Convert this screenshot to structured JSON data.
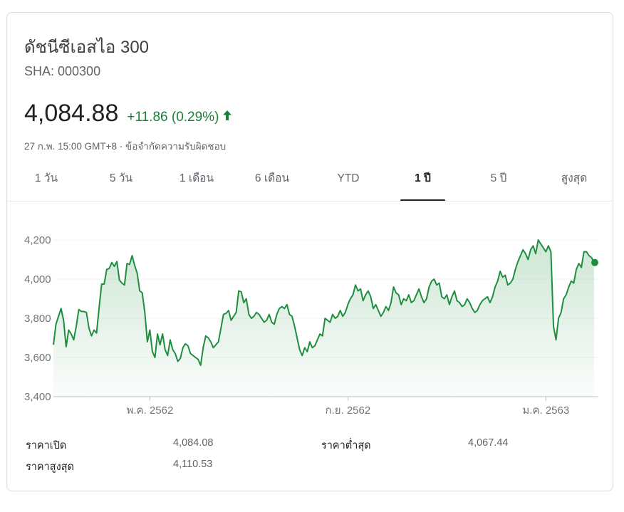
{
  "header": {
    "title": "ดัชนีซีเอสไอ 300",
    "ticker": "SHA: 000300"
  },
  "quote": {
    "price": "4,084.88",
    "change": "+11.86 (0.29%)",
    "direction_icon": "arrow-up-icon",
    "timestamp": "27 ก.พ. 15:00 GMT+8",
    "separator": "·",
    "disclaimer": "ข้อจำกัดความรับผิดชอบ"
  },
  "tabs": [
    {
      "label": "1 วัน"
    },
    {
      "label": "5 วัน"
    },
    {
      "label": "1 เดือน"
    },
    {
      "label": "6 เดือน"
    },
    {
      "label": "YTD"
    },
    {
      "label": "1 ปี"
    },
    {
      "label": "5 ปี"
    },
    {
      "label": "สูงสุด"
    }
  ],
  "active_tab": "1 ปี",
  "colors": {
    "line": "#1e8e3e",
    "positive": "#188038",
    "grid": "#f1f3f4",
    "axis": "#bdc1c6"
  },
  "chart_data": {
    "type": "area",
    "ylim": [
      3400,
      4200
    ],
    "yticks": [
      3400,
      3600,
      3800,
      4000,
      4200
    ],
    "ytick_labels": [
      "3,400",
      "3,600",
      "3,800",
      "4,000",
      "4,200"
    ],
    "xtick_labels": [
      "พ.ค. 2562",
      "ก.ย. 2562",
      "ม.ค. 2563"
    ],
    "xtick_index": [
      38,
      116,
      194
    ],
    "grid": true,
    "values": [
      3665,
      3770,
      3810,
      3850,
      3790,
      3655,
      3740,
      3720,
      3690,
      3760,
      3845,
      3835,
      3835,
      3830,
      3750,
      3710,
      3740,
      3725,
      3855,
      3975,
      3975,
      4050,
      4055,
      4085,
      4065,
      4090,
      3995,
      3980,
      3970,
      4080,
      4075,
      4120,
      4070,
      4030,
      3940,
      3930,
      3830,
      3680,
      3740,
      3630,
      3600,
      3720,
      3665,
      3720,
      3640,
      3610,
      3690,
      3640,
      3620,
      3580,
      3595,
      3650,
      3670,
      3660,
      3620,
      3610,
      3600,
      3590,
      3560,
      3650,
      3710,
      3700,
      3680,
      3650,
      3665,
      3680,
      3750,
      3820,
      3825,
      3840,
      3790,
      3810,
      3830,
      3940,
      3935,
      3880,
      3900,
      3820,
      3800,
      3810,
      3830,
      3820,
      3800,
      3780,
      3790,
      3820,
      3780,
      3770,
      3820,
      3850,
      3860,
      3850,
      3870,
      3820,
      3810,
      3760,
      3700,
      3640,
      3610,
      3650,
      3630,
      3680,
      3650,
      3660,
      3690,
      3720,
      3710,
      3800,
      3790,
      3780,
      3820,
      3800,
      3810,
      3840,
      3810,
      3830,
      3870,
      3900,
      3920,
      3970,
      3940,
      3950,
      3890,
      3920,
      3940,
      3910,
      3850,
      3870,
      3840,
      3810,
      3830,
      3860,
      3840,
      3880,
      3960,
      3930,
      3920,
      3870,
      3900,
      3890,
      3920,
      3880,
      3890,
      3920,
      3950,
      3910,
      3880,
      3900,
      3960,
      3990,
      4000,
      3970,
      3980,
      3910,
      3900,
      3920,
      3870,
      3910,
      3940,
      3890,
      3880,
      3860,
      3870,
      3900,
      3880,
      3850,
      3830,
      3840,
      3870,
      3890,
      3900,
      3910,
      3880,
      3910,
      3960,
      3990,
      4040,
      4010,
      4020,
      3970,
      3980,
      4000,
      4050,
      4090,
      4120,
      4150,
      4130,
      4100,
      4150,
      4170,
      4130,
      4200,
      4180,
      4160,
      4140,
      4170,
      4140,
      3760,
      3690,
      3800,
      3830,
      3900,
      3920,
      3960,
      3990,
      3980,
      4050,
      4080,
      4060,
      4140,
      4140,
      4120,
      4110,
      4084.88
    ]
  },
  "stats": [
    {
      "label": "ราคาเปิด",
      "value": "4,084.08"
    },
    {
      "label": "ราคาต่ำสุด",
      "value": "4,067.44"
    },
    {
      "label": "ราคาสูงสุด",
      "value": "4,110.53"
    }
  ]
}
